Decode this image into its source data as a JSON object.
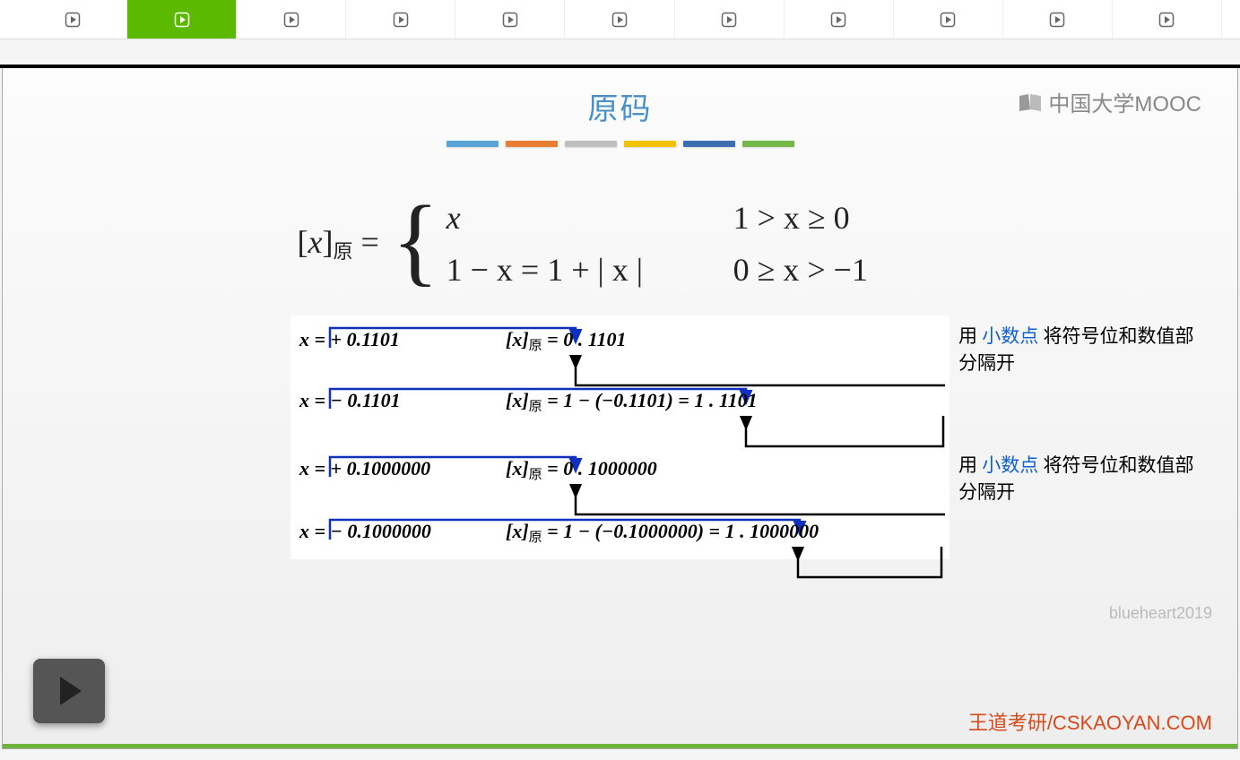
{
  "tabs": {
    "count": 11,
    "active_index": 1
  },
  "logo_text": "中国大学MOOC",
  "title": "原码",
  "color_bars": [
    "#5aa3d6",
    "#e77e33",
    "#bfbfbf",
    "#f2c300",
    "#3d6fb0",
    "#74b84a"
  ],
  "formula": {
    "lhs_open": "[",
    "lhs_var": "x",
    "lhs_close": "]",
    "lhs_sub": "原",
    "eq": " = ",
    "row1_expr": "x",
    "row1_cond": "1 > x ≥ 0",
    "row2_expr": "1 − x = 1 + | x |",
    "row2_cond": "0 ≥ x > −1"
  },
  "examples": [
    {
      "lhs": "x = + 0.1101",
      "rhs": "[x]原 = 0 . 1101",
      "note": {
        "pre": "用 ",
        "hl": "小数点",
        "post": " 将符号位和数值部分隔开"
      }
    },
    {
      "lhs": "x = − 0.1101",
      "rhs": "[x]原 = 1 − (−0.1101) = 1 . 1101"
    },
    {
      "lhs": "x = + 0.1000000",
      "rhs": "[x]原 = 0 . 1000000",
      "note": {
        "pre": "用 ",
        "hl": "小数点",
        "post": " 将符号位和数值部分隔开"
      }
    },
    {
      "lhs": "x = − 0.1000000",
      "rhs": "[x]原 = 1 − (−0.1000000) = 1 . 1000000"
    }
  ],
  "watermark": "blueheart2019",
  "footer": "王道考研/CSKAOYAN.COM",
  "arrow_color_blue": "#1030c0",
  "arrow_color_black": "#000000"
}
